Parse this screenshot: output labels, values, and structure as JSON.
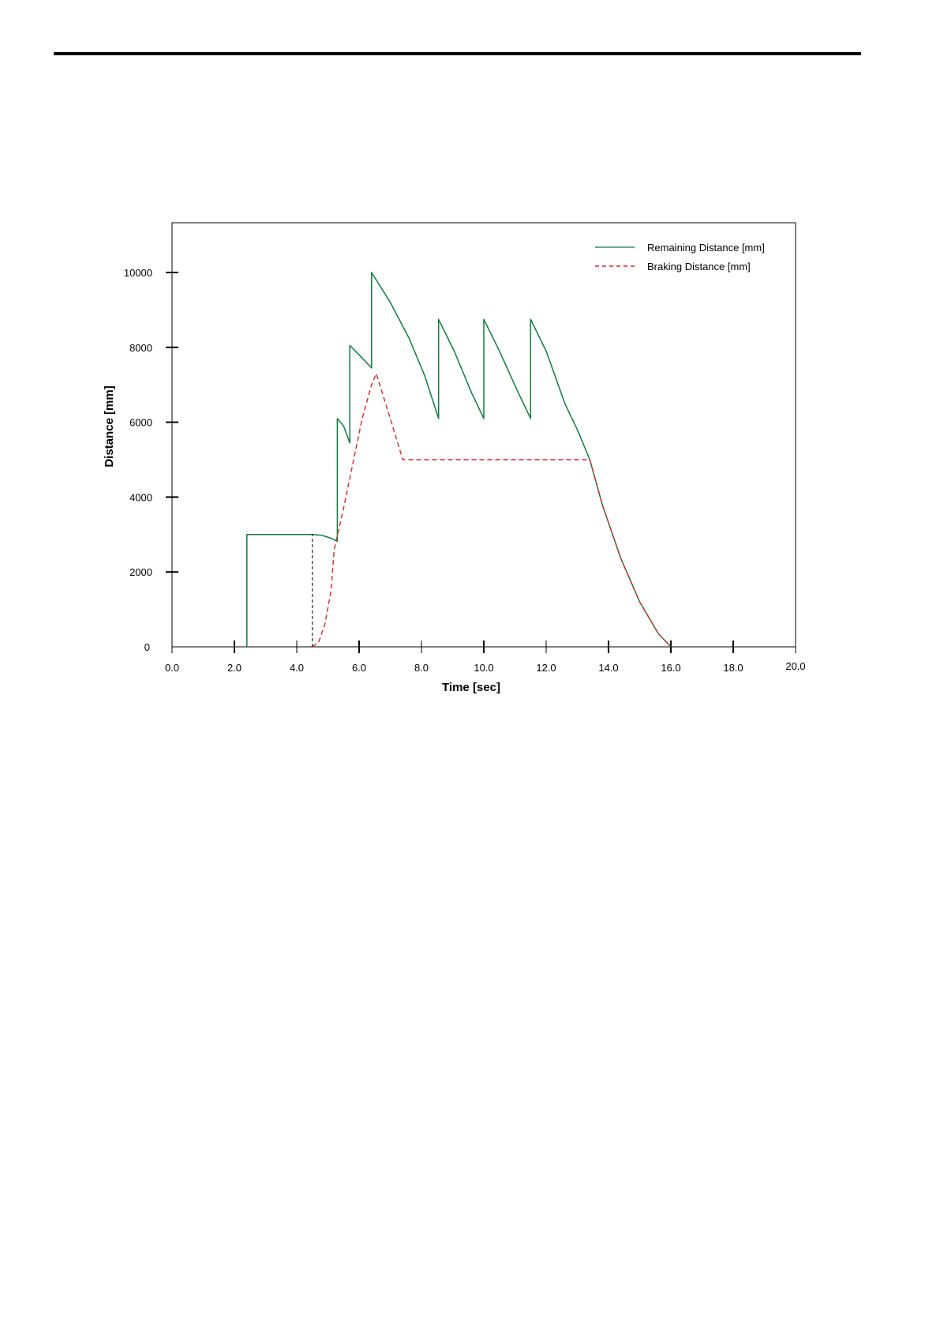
{
  "colors": {
    "remaining": "#127a43",
    "braking": "#d62728",
    "marker": "#000000",
    "frame": "#000000"
  },
  "chart_data": {
    "type": "line",
    "title": "",
    "xlabel": "Time [sec]",
    "ylabel": "Distance [mm]",
    "xlim": [
      0,
      20
    ],
    "ylim": [
      0,
      11000
    ],
    "x_ticks": [
      {
        "value": 0,
        "label": "0.0"
      },
      {
        "value": 2,
        "label": "2.0"
      },
      {
        "value": 4,
        "label": "4.0"
      },
      {
        "value": 6,
        "label": "6.0"
      },
      {
        "value": 8,
        "label": "8.0"
      },
      {
        "value": 10,
        "label": "10.0"
      },
      {
        "value": 12,
        "label": "12.0"
      },
      {
        "value": 14,
        "label": "14.0"
      },
      {
        "value": 16,
        "label": "16.0"
      },
      {
        "value": 18,
        "label": "18.0"
      },
      {
        "value": 20,
        "label": "20.0"
      }
    ],
    "y_ticks": [
      {
        "value": 0,
        "label": "0"
      },
      {
        "value": 2000,
        "label": "2000"
      },
      {
        "value": 4000,
        "label": "4000"
      },
      {
        "value": 6000,
        "label": "6000"
      },
      {
        "value": 8000,
        "label": "8000"
      },
      {
        "value": 10000,
        "label": "10000"
      }
    ],
    "grid": false,
    "legend_position": "top-right",
    "series": [
      {
        "name": "Remaining Distance [mm]",
        "style": "solid",
        "x": [
          2.4,
          2.4,
          4.5,
          4.8,
          5.1,
          5.3,
          5.3,
          5.5,
          5.7,
          5.7,
          6.0,
          6.4,
          6.4,
          7.0,
          7.6,
          8.1,
          8.55,
          8.55,
          9.05,
          9.6,
          10.0,
          10.0,
          10.5,
          11.1,
          11.5,
          11.5,
          12.0,
          12.6,
          13.0,
          13.4,
          13.8,
          14.4,
          15.0,
          15.6,
          16.0
        ],
        "y": [
          0,
          3000,
          3000,
          2980,
          2900,
          2820,
          6100,
          5900,
          5450,
          8050,
          7800,
          7450,
          10000,
          9200,
          8250,
          7250,
          6100,
          8750,
          7900,
          6800,
          6100,
          8750,
          7900,
          6800,
          6100,
          8750,
          7900,
          6500,
          5800,
          5000,
          3800,
          2350,
          1200,
          350,
          0
        ]
      },
      {
        "name": "Braking Distance [mm]",
        "style": "dashed",
        "x": [
          4.5,
          4.7,
          4.9,
          5.1,
          5.2,
          5.5,
          5.8,
          6.1,
          6.4,
          6.55,
          7.0,
          7.4,
          13.4,
          13.8,
          14.4,
          15.0,
          15.6,
          16.0
        ],
        "y": [
          0,
          120,
          600,
          1500,
          2600,
          3700,
          4900,
          6100,
          7000,
          7300,
          6100,
          5000,
          5000,
          3800,
          2350,
          1200,
          350,
          0
        ]
      }
    ],
    "markers": [
      {
        "type": "vertical-dashed",
        "x": 4.5,
        "y_from": 0,
        "y_to": 3000
      }
    ]
  }
}
